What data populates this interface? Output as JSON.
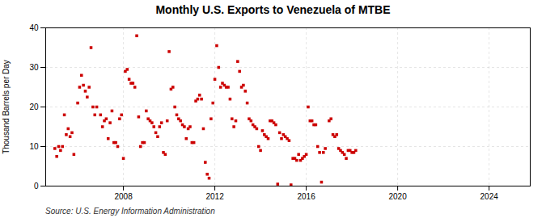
{
  "chart_data": {
    "type": "scatter",
    "title": "Monthly U.S. Exports to Venezuela of MTBE",
    "ylabel": "Thousand Barrels per Day",
    "annotations": [
      "Source: U.S. Energy Information Administration"
    ],
    "color": "#cc0000",
    "marker": "square",
    "grid": true,
    "xlim": [
      2004.6,
      2025.8
    ],
    "ylim": [
      0,
      40
    ],
    "xticks": [
      2008,
      2012,
      2016,
      2020,
      2024
    ],
    "yticks": [
      0,
      10,
      20,
      30,
      40
    ],
    "x": [
      2005,
      2005.0833333333333,
      2005.1666666666667,
      2005.25,
      2005.3333333333333,
      2005.4166666666667,
      2005.5,
      2005.5833333333333,
      2005.6666666666667,
      2005.75,
      2005.8333333333333,
      2006,
      2006.0833333333333,
      2006.1666666666667,
      2006.25,
      2006.3333333333333,
      2006.4166666666667,
      2006.5,
      2006.5833333333333,
      2006.6666666666667,
      2006.75,
      2006.8333333333333,
      2007,
      2007.0833333333333,
      2007.1666666666667,
      2007.25,
      2007.3333333333333,
      2007.4166666666667,
      2007.5,
      2007.5833333333333,
      2007.6666666666667,
      2007.75,
      2007.8333333333333,
      2007.9166666666667,
      2008,
      2008.0833333333333,
      2008.1666666666667,
      2008.25,
      2008.3333333333333,
      2008.4166666666667,
      2008.5,
      2008.5833333333333,
      2008.6666666666667,
      2008.75,
      2008.8333333333333,
      2008.9166666666667,
      2009,
      2009.0833333333333,
      2009.1666666666667,
      2009.25,
      2009.3333333333333,
      2009.4166666666667,
      2009.5,
      2009.5833333333333,
      2009.6666666666667,
      2009.75,
      2009.8333333333333,
      2009.9166666666667,
      2010,
      2010.0833333333333,
      2010.1666666666667,
      2010.25,
      2010.3333333333333,
      2010.4166666666667,
      2010.5,
      2010.5833333333333,
      2010.6666666666667,
      2010.75,
      2010.8333333333333,
      2010.9166666666667,
      2011,
      2011.0833333333333,
      2011.1666666666667,
      2011.25,
      2011.3333333333333,
      2011.4166666666667,
      2011.5,
      2011.5833333333333,
      2011.6666666666667,
      2011.75,
      2011.8333333333333,
      2011.9166666666667,
      2012,
      2012.0833333333333,
      2012.1666666666667,
      2012.25,
      2012.3333333333333,
      2012.4166666666667,
      2012.5,
      2012.5833333333333,
      2012.6666666666667,
      2012.75,
      2012.8333333333333,
      2012.9166666666667,
      2013,
      2013.0833333333333,
      2013.1666666666667,
      2013.25,
      2013.3333333333333,
      2013.4166666666667,
      2013.5,
      2013.5833333333333,
      2013.6666666666667,
      2013.75,
      2013.8333333333333,
      2013.9166666666667,
      2014,
      2014.0833333333333,
      2014.1666666666667,
      2014.25,
      2014.3333333333333,
      2014.4166666666667,
      2014.5,
      2014.5833333333333,
      2014.6666666666667,
      2014.75,
      2014.8333333333333,
      2014.9166666666667,
      2015,
      2015.0833333333333,
      2015.1666666666667,
      2015.25,
      2015.3333333333333,
      2015.4166666666667,
      2015.5,
      2015.5833333333333,
      2015.6666666666667,
      2015.75,
      2015.8333333333333,
      2015.9166666666667,
      2016,
      2016.0833333333333,
      2016.1666666666667,
      2016.25,
      2016.3333333333333,
      2016.4166666666667,
      2016.5,
      2016.5833333333333,
      2016.6666666666667,
      2016.75,
      2016.8333333333333,
      2017,
      2017.0833333333333,
      2017.1666666666667,
      2017.25,
      2017.3333333333333,
      2017.4166666666667,
      2017.5,
      2017.5833333333333,
      2017.6666666666667,
      2017.75,
      2017.8333333333333,
      2017.9166666666667,
      2018,
      2018.0833333333333,
      2018.1666666666667
    ],
    "values": [
      9.5,
      7.5,
      10.0,
      9.0,
      10.0,
      18.0,
      13.0,
      14.5,
      12.5,
      13.5,
      8.0,
      21.0,
      25.0,
      28.0,
      25.5,
      24.0,
      22.5,
      25.0,
      35.0,
      20.0,
      18.0,
      20.0,
      18.0,
      15.0,
      16.5,
      17.0,
      12.0,
      16.0,
      19.0,
      11.0,
      11.0,
      10.0,
      17.0,
      18.0,
      7.0,
      29.0,
      29.5,
      27.0,
      26.0,
      26.0,
      25.0,
      38.0,
      17.5,
      10.0,
      11.0,
      11.0,
      19.0,
      17.0,
      16.5,
      16.0,
      15.0,
      13.5,
      12.5,
      15.0,
      16.0,
      8.5,
      8.0,
      16.5,
      34.0,
      24.5,
      25.0,
      20.0,
      18.0,
      17.0,
      16.5,
      15.5,
      15.0,
      12.0,
      14.5,
      15.0,
      11.0,
      11.0,
      21.5,
      22.0,
      23.0,
      22.0,
      14.5,
      6.0,
      3.0,
      2.0,
      17.0,
      21.0,
      27.0,
      35.5,
      30.0,
      25.0,
      26.0,
      25.5,
      25.0,
      25.0,
      22.0,
      17.0,
      15.0,
      16.5,
      31.5,
      29.0,
      25.0,
      25.5,
      24.0,
      21.0,
      17.0,
      16.5,
      15.5,
      15.0,
      14.5,
      10.0,
      9.0,
      14.0,
      13.0,
      12.5,
      12.0,
      16.5,
      16.5,
      16.0,
      15.5,
      0.5,
      13.5,
      12.0,
      13.0,
      12.5,
      12.0,
      11.5,
      0.3,
      7.0,
      7.0,
      6.5,
      8.0,
      6.5,
      7.0,
      7.5,
      8.0,
      20.0,
      16.5,
      16.5,
      15.5,
      15.5,
      10.0,
      8.5,
      1.0,
      8.5,
      9.5,
      16.5,
      17.0,
      13.0,
      12.5,
      13.0,
      9.5,
      9.0,
      8.5,
      8.0,
      7.0,
      9.0,
      9.0,
      8.5,
      8.5,
      9.0
    ]
  }
}
